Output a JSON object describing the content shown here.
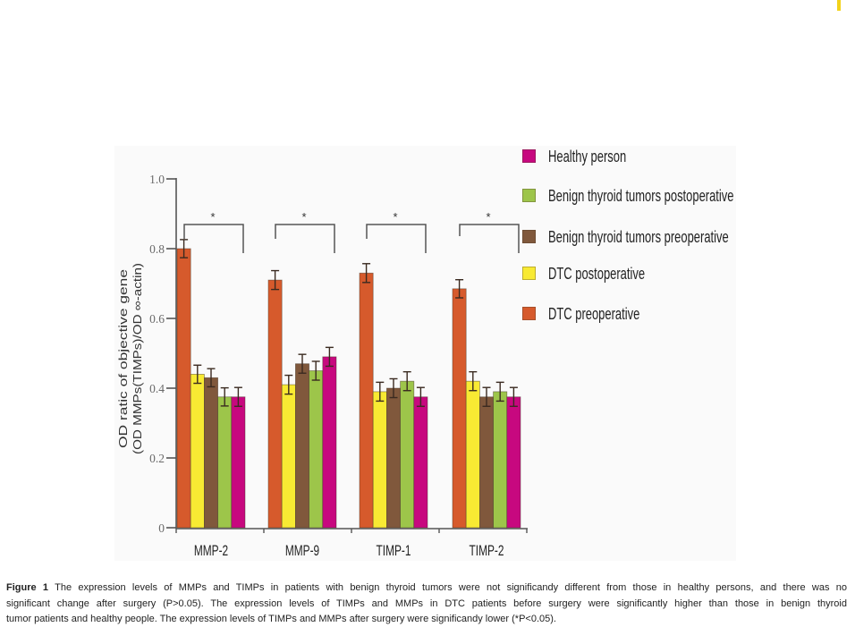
{
  "figure": {
    "caption_label": "Figure 1",
    "caption_lines": [
      " The expression levels of MMPs and TIMPs in patients with benign thyroid tumors were not significandy different from those in healthy persons, and there was no",
      "significant change after surgery (P>0.05). The expression levels of TIMPs and MMPs in DTC patients before surgery were significantly higher than those in benign thyroid",
      "tumor patients and healthy people. The expression levels of TIMPs and MMPs after surgery were significandy lower (*P<0.05)."
    ]
  },
  "chart_data": {
    "type": "bar",
    "title": "",
    "xlabel": "",
    "ylabel": [
      "OD ratic of objective gene",
      "(OD MMPs(TIMPs)/OD ∞-actin)"
    ],
    "ylim": [
      0,
      1.0
    ],
    "yticks": [
      {
        "value": 0,
        "label": "0"
      },
      {
        "value": 0.2,
        "label": "0.2"
      },
      {
        "value": 0.4,
        "label": "0.4"
      },
      {
        "value": 0.6,
        "label": "0.6"
      },
      {
        "value": 0.8,
        "label": "0.8"
      },
      {
        "value": 1.0,
        "label": "1.0"
      }
    ],
    "grid": false,
    "categories": [
      "MMP-2",
      "MMP-9",
      "TIMP-1",
      "TIMP-2"
    ],
    "series": [
      {
        "name": "DTC preoperative",
        "color": "#d65a2c",
        "values": [
          0.8,
          0.71,
          0.73,
          0.685
        ],
        "errors": [
          0.026,
          0.027,
          0.027,
          0.026
        ]
      },
      {
        "name": "DTC postoperative",
        "color": "#f8ea33",
        "values": [
          0.44,
          0.41,
          0.39,
          0.42
        ],
        "errors": [
          0.026,
          0.027,
          0.027,
          0.027
        ]
      },
      {
        "name": "Benign thyroid tumors preoperative",
        "color": "#80583c",
        "values": [
          0.43,
          0.47,
          0.4,
          0.375
        ],
        "errors": [
          0.026,
          0.027,
          0.027,
          0.027
        ]
      },
      {
        "name": "Benign thyroid tumors postoperative",
        "color": "#9dc54a",
        "values": [
          0.375,
          0.45,
          0.42,
          0.39
        ],
        "errors": [
          0.026,
          0.027,
          0.027,
          0.027
        ]
      },
      {
        "name": "Healthy person",
        "color": "#c7087f",
        "values": [
          0.375,
          0.49,
          0.375,
          0.375
        ],
        "errors": [
          0.027,
          0.027,
          0.027,
          0.027
        ]
      }
    ],
    "legend": {
      "placement": "right",
      "order": [
        "Healthy person",
        "Benign thyroid tumors postoperative",
        "Benign thyroid tumors preoperative",
        "DTC postoperative",
        "DTC preoperative"
      ]
    },
    "annotations": [
      {
        "category": "MMP-2",
        "label": "*",
        "from": "DTC preoperative",
        "to": "Healthy person"
      },
      {
        "category": "MMP-9",
        "label": "*",
        "from": "DTC preoperative",
        "to": "Healthy person"
      },
      {
        "category": "TIMP-1",
        "label": "*",
        "from": "DTC preoperative",
        "to": "Healthy person"
      },
      {
        "category": "TIMP-2",
        "label": "*",
        "from": "DTC preoperative",
        "to": "Healthy person"
      }
    ]
  }
}
